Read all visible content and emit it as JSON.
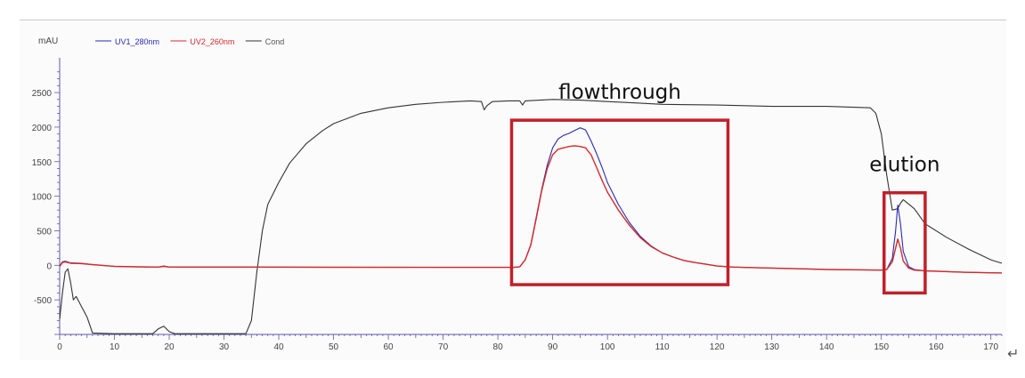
{
  "chart_data": {
    "type": "line",
    "y_unit_label": "mAU",
    "xlim": [
      0,
      172
    ],
    "ylim": [
      -1000,
      2900
    ],
    "x_ticks": [
      0,
      10,
      20,
      30,
      40,
      50,
      60,
      70,
      80,
      90,
      100,
      110,
      120,
      130,
      140,
      150,
      160,
      170
    ],
    "y_ticks": [
      -500,
      0,
      500,
      1000,
      1500,
      2000,
      2500
    ],
    "legend_position": "top-left",
    "grid": false,
    "series": [
      {
        "name": "UV1_280nm",
        "color": "#2a2ab0",
        "points": [
          [
            0,
            -10
          ],
          [
            0.5,
            50
          ],
          [
            1,
            60
          ],
          [
            2,
            35
          ],
          [
            4,
            30
          ],
          [
            6,
            10
          ],
          [
            10,
            -15
          ],
          [
            12,
            -20
          ],
          [
            18,
            -25
          ],
          [
            19,
            -10
          ],
          [
            20,
            -25
          ],
          [
            35,
            -25
          ],
          [
            50,
            -28
          ],
          [
            70,
            -30
          ],
          [
            83,
            -30
          ],
          [
            84,
            -20
          ],
          [
            85,
            80
          ],
          [
            86,
            300
          ],
          [
            87,
            700
          ],
          [
            88,
            1100
          ],
          [
            89,
            1450
          ],
          [
            90,
            1700
          ],
          [
            91,
            1830
          ],
          [
            92,
            1880
          ],
          [
            93,
            1910
          ],
          [
            94,
            1950
          ],
          [
            95,
            1990
          ],
          [
            96,
            1960
          ],
          [
            97,
            1800
          ],
          [
            98,
            1620
          ],
          [
            99,
            1420
          ],
          [
            100,
            1200
          ],
          [
            102,
            880
          ],
          [
            104,
            620
          ],
          [
            106,
            420
          ],
          [
            108,
            280
          ],
          [
            110,
            180
          ],
          [
            112,
            120
          ],
          [
            114,
            70
          ],
          [
            116,
            40
          ],
          [
            118,
            15
          ],
          [
            120,
            -10
          ],
          [
            123,
            -25
          ],
          [
            130,
            -40
          ],
          [
            140,
            -60
          ],
          [
            150,
            -70
          ],
          [
            151,
            -60
          ],
          [
            152,
            100
          ],
          [
            152.6,
            500
          ],
          [
            153,
            870
          ],
          [
            153.5,
            600
          ],
          [
            154,
            200
          ],
          [
            155,
            -20
          ],
          [
            156,
            -60
          ],
          [
            158,
            -80
          ],
          [
            165,
            -100
          ],
          [
            172,
            -110
          ]
        ]
      },
      {
        "name": "UV2_260nm",
        "color": "#d42a2a",
        "points": [
          [
            0,
            -15
          ],
          [
            0.5,
            40
          ],
          [
            1,
            50
          ],
          [
            2,
            30
          ],
          [
            4,
            25
          ],
          [
            6,
            10
          ],
          [
            10,
            -15
          ],
          [
            18,
            -25
          ],
          [
            19,
            -15
          ],
          [
            20,
            -25
          ],
          [
            35,
            -25
          ],
          [
            50,
            -28
          ],
          [
            70,
            -30
          ],
          [
            83,
            -30
          ],
          [
            84,
            -20
          ],
          [
            85,
            80
          ],
          [
            86,
            290
          ],
          [
            87,
            680
          ],
          [
            88,
            1080
          ],
          [
            89,
            1400
          ],
          [
            90,
            1600
          ],
          [
            91,
            1680
          ],
          [
            92,
            1700
          ],
          [
            93,
            1720
          ],
          [
            94,
            1730
          ],
          [
            95,
            1720
          ],
          [
            96,
            1700
          ],
          [
            97,
            1600
          ],
          [
            98,
            1420
          ],
          [
            99,
            1230
          ],
          [
            100,
            1060
          ],
          [
            102,
            800
          ],
          [
            104,
            580
          ],
          [
            106,
            400
          ],
          [
            108,
            270
          ],
          [
            110,
            180
          ],
          [
            112,
            120
          ],
          [
            114,
            70
          ],
          [
            116,
            40
          ],
          [
            118,
            15
          ],
          [
            120,
            -10
          ],
          [
            123,
            -25
          ],
          [
            130,
            -40
          ],
          [
            140,
            -60
          ],
          [
            150,
            -70
          ],
          [
            151,
            -60
          ],
          [
            152,
            50
          ],
          [
            152.6,
            250
          ],
          [
            153,
            380
          ],
          [
            153.5,
            250
          ],
          [
            154,
            60
          ],
          [
            155,
            -40
          ],
          [
            156,
            -70
          ],
          [
            158,
            -80
          ],
          [
            165,
            -100
          ],
          [
            172,
            -110
          ]
        ]
      },
      {
        "name": "Cond",
        "color": "#333333",
        "points": [
          [
            0,
            -780
          ],
          [
            0.5,
            -400
          ],
          [
            1,
            -100
          ],
          [
            1.5,
            -50
          ],
          [
            2,
            -250
          ],
          [
            2.5,
            -500
          ],
          [
            3,
            -450
          ],
          [
            4,
            -600
          ],
          [
            5,
            -750
          ],
          [
            6,
            -980
          ],
          [
            10,
            -990
          ],
          [
            17,
            -990
          ],
          [
            18,
            -920
          ],
          [
            19,
            -880
          ],
          [
            20,
            -960
          ],
          [
            21,
            -990
          ],
          [
            34,
            -990
          ],
          [
            35,
            -800
          ],
          [
            36,
            -100
          ],
          [
            37,
            500
          ],
          [
            38,
            880
          ],
          [
            40,
            1200
          ],
          [
            42,
            1480
          ],
          [
            45,
            1760
          ],
          [
            48,
            1950
          ],
          [
            50,
            2050
          ],
          [
            55,
            2200
          ],
          [
            60,
            2280
          ],
          [
            65,
            2330
          ],
          [
            70,
            2360
          ],
          [
            75,
            2380
          ],
          [
            77,
            2370
          ],
          [
            77.5,
            2250
          ],
          [
            78,
            2310
          ],
          [
            79,
            2370
          ],
          [
            82,
            2380
          ],
          [
            84,
            2380
          ],
          [
            84.5,
            2320
          ],
          [
            85,
            2380
          ],
          [
            90,
            2400
          ],
          [
            95,
            2390
          ],
          [
            100,
            2370
          ],
          [
            105,
            2350
          ],
          [
            110,
            2330
          ],
          [
            120,
            2320
          ],
          [
            130,
            2300
          ],
          [
            140,
            2300
          ],
          [
            148,
            2280
          ],
          [
            149,
            2200
          ],
          [
            150,
            1900
          ],
          [
            151,
            1300
          ],
          [
            152,
            800
          ],
          [
            153,
            820
          ],
          [
            153.5,
            900
          ],
          [
            154,
            950
          ],
          [
            156,
            820
          ],
          [
            158,
            600
          ],
          [
            162,
            400
          ],
          [
            166,
            230
          ],
          [
            170,
            80
          ],
          [
            172,
            30
          ]
        ]
      }
    ],
    "annotations": [
      {
        "text": "flowthrough",
        "box_x": [
          82.5,
          122
        ],
        "box_y": [
          -280,
          2100
        ]
      },
      {
        "text": "elution",
        "box_x": [
          150.5,
          158
        ],
        "box_y": [
          -400,
          1050
        ]
      }
    ]
  },
  "styles": {
    "axis_color": "#5a5aa8",
    "box_color": "#c0202a",
    "screen_bg": "#fbfbfc"
  },
  "return_glyph": "↵"
}
